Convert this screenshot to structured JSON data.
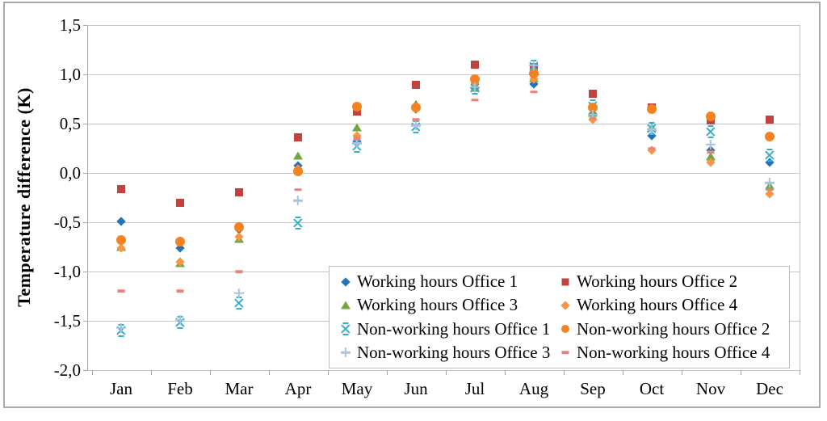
{
  "chart_data": {
    "type": "scatter",
    "title": "",
    "xlabel": "",
    "ylabel": "Temperature difference (K)",
    "ylim": [
      -2.0,
      1.5
    ],
    "grid": "horizontal",
    "legend_position": "inside-bottom-right",
    "decimal_separator": ",",
    "y_ticks": [
      {
        "label": "1,5",
        "value": 1.5
      },
      {
        "label": "1,0",
        "value": 1.0
      },
      {
        "label": "0,5",
        "value": 0.5
      },
      {
        "label": "0,0",
        "value": 0.0
      },
      {
        "label": "-0,5",
        "value": -0.5
      },
      {
        "label": "-1,0",
        "value": -1.0
      },
      {
        "label": "-1,5",
        "value": -1.5
      },
      {
        "label": "-2,0",
        "value": -2.0
      }
    ],
    "categories": [
      "Jan",
      "Feb",
      "Mar",
      "Apr",
      "May",
      "Jun",
      "Jul",
      "Aug",
      "Sep",
      "Oct",
      "Nov",
      "Dec"
    ],
    "series": [
      {
        "name": "Working hours Office 1",
        "marker": "diamond",
        "color": "#2273b9",
        "values": [
          -0.49,
          -0.76,
          -0.57,
          0.07,
          0.32,
          0.65,
          0.86,
          0.9,
          0.6,
          0.38,
          0.23,
          0.11
        ]
      },
      {
        "name": "Working hours Office 2",
        "marker": "square",
        "color": "#c2423e",
        "values": [
          -0.16,
          -0.3,
          -0.2,
          0.36,
          0.62,
          0.89,
          1.1,
          1.07,
          0.8,
          0.66,
          0.53,
          0.54
        ]
      },
      {
        "name": "Working hours Office 3",
        "marker": "triangle",
        "color": "#70a73f",
        "values": [
          -0.75,
          -0.92,
          -0.67,
          0.17,
          0.46,
          0.7,
          0.86,
          0.96,
          0.61,
          0.46,
          0.16,
          -0.13
        ]
      },
      {
        "name": "Working hours Office 4",
        "marker": "diamond",
        "color": "#f79646",
        "values": [
          -0.76,
          -0.9,
          -0.65,
          0.04,
          0.38,
          0.67,
          0.91,
          0.95,
          0.54,
          0.23,
          0.11,
          -0.21
        ]
      },
      {
        "name": "Non-working hours Office 1",
        "marker": "x",
        "color": "#35aecb",
        "values": [
          -1.6,
          -1.52,
          -1.32,
          -0.51,
          0.27,
          0.47,
          0.86,
          1.08,
          0.68,
          0.45,
          0.42,
          0.18
        ]
      },
      {
        "name": "Non-working hours Office 2",
        "marker": "circle",
        "color": "#f58220",
        "values": [
          -0.68,
          -0.7,
          -0.55,
          0.02,
          0.67,
          0.66,
          0.95,
          1.01,
          0.66,
          0.65,
          0.57,
          0.37
        ]
      },
      {
        "name": "Non-working hours Office 3",
        "marker": "plus",
        "color": "#a6c3e2",
        "values": [
          -1.57,
          -1.49,
          -1.22,
          -0.28,
          0.3,
          0.48,
          0.87,
          1.09,
          0.59,
          0.44,
          0.29,
          -0.1
        ]
      },
      {
        "name": "Non-working hours Office 4",
        "marker": "dash",
        "color": "#e8827a",
        "values": [
          -1.2,
          -1.2,
          -1.0,
          -0.17,
          0.35,
          0.54,
          0.74,
          0.82,
          0.55,
          0.25,
          0.21,
          -0.17
        ]
      }
    ]
  }
}
